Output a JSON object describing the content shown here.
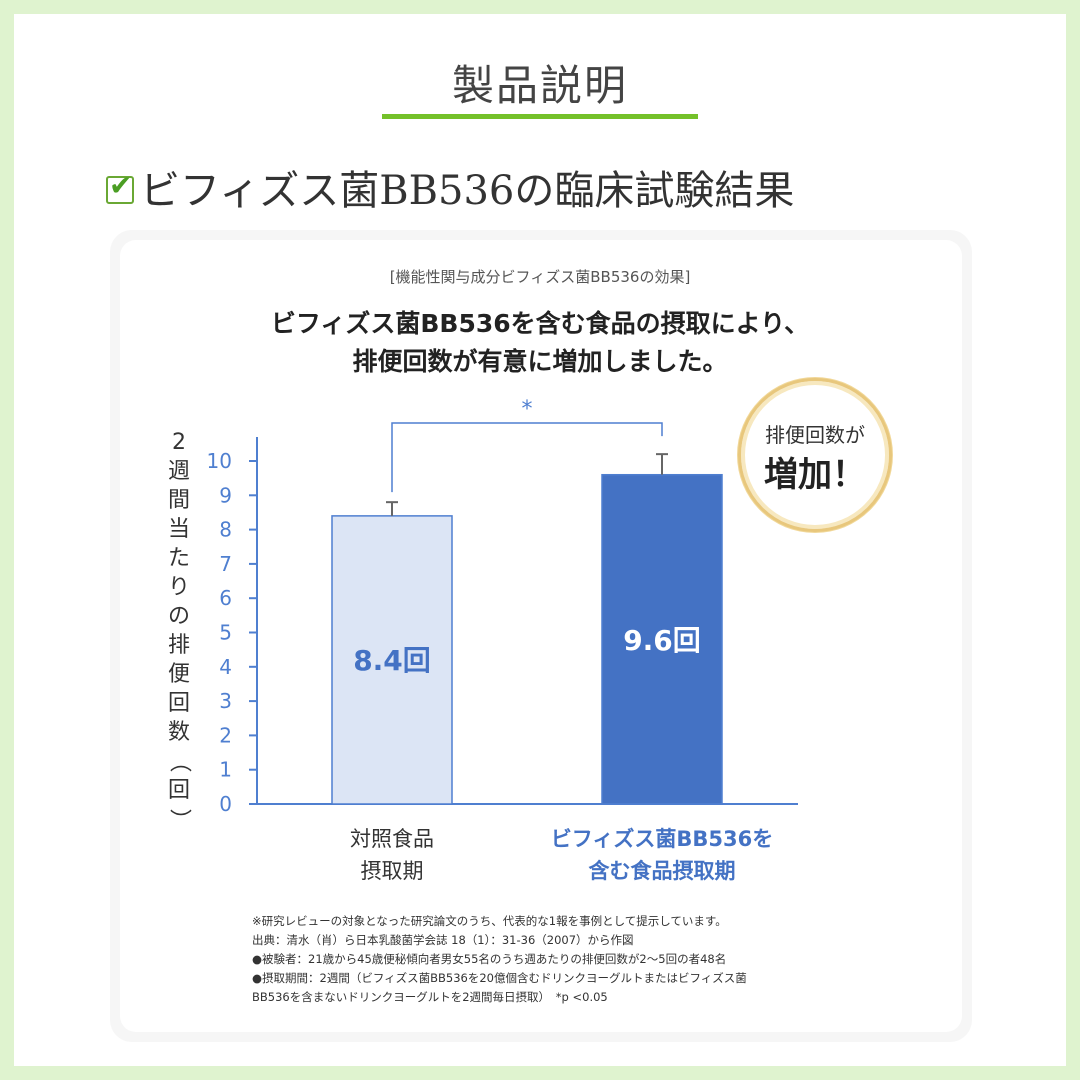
{
  "page": {
    "section_title": "製品説明",
    "heading": "ビフィズス菌BB536の臨床試験結果",
    "checkbox_glyph": "✔",
    "accent_color": "#74c12a"
  },
  "stamp": {
    "line1": "排便回数が",
    "line2": "増加！"
  },
  "chart_data": {
    "type": "bar",
    "label": "[機能性関与成分ビフィズス菌BB536の効果]",
    "title_lines": [
      "ビフィズス菌BB536を含む食品の摂取により、",
      "排便回数が有意に増加しました。"
    ],
    "ylabel": "2週間当たりの排便回数（回）",
    "ylim": [
      0,
      10
    ],
    "yticks": [
      0,
      1,
      2,
      3,
      4,
      5,
      6,
      7,
      8,
      9,
      10
    ],
    "categories": [
      {
        "line1": "対照食品",
        "line2": "摂取期",
        "color": "#333333"
      },
      {
        "line1": "ビフィズス菌BB536を",
        "line2": "含む食品摂取期",
        "color": "#4472c4"
      }
    ],
    "values": [
      8.4,
      9.6
    ],
    "error_tops": [
      8.8,
      10.2
    ],
    "value_labels": [
      "8.4回",
      "9.6回"
    ],
    "bar_colors": [
      "#dce5f5",
      "#4472c4"
    ],
    "value_label_colors": [
      "#4472c4",
      "#ffffff"
    ],
    "significance": "*",
    "axis_color": "#4f7fd0"
  },
  "notes": [
    "※研究レビューの対象となった研究論文のうち、代表的な1報を事例として提示しています。",
    "出典：清水（肖）ら日本乳酸菌学会誌 18（1）：31-36（2007）から作図",
    "●被験者：21歳から45歳便秘傾向者男女55名のうち週あたりの排便回数が2〜5回の者48名",
    "●摂取期間：2週間（ビフィズス菌BB536を20億個含むドリンクヨーグルトまたはビフィズス菌",
    "BB536を含まないドリンクヨーグルトを2週間毎日摂取）　*p <0.05"
  ]
}
